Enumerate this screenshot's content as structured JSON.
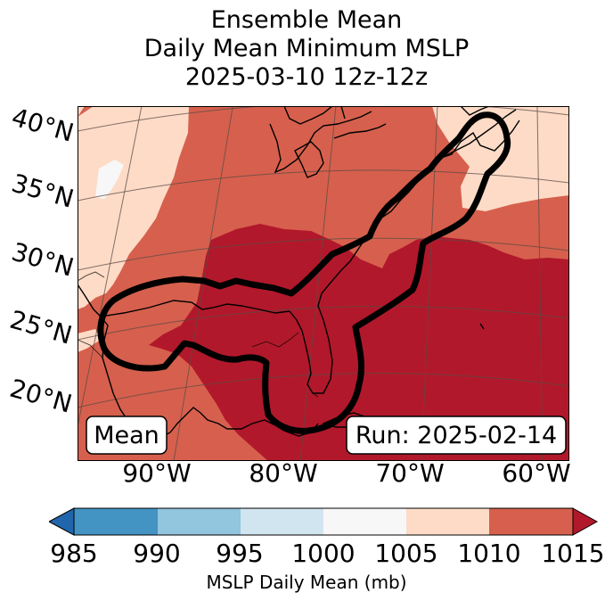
{
  "title": {
    "line1": "Ensemble Mean",
    "line2": "Daily Mean Minimum MSLP",
    "line3": "2025-03-10 12z-12z"
  },
  "map": {
    "lat_labels": [
      "40°N",
      "35°N",
      "30°N",
      "25°N",
      "20°N"
    ],
    "lon_labels": [
      "90°W",
      "80°W",
      "70°W",
      "60°W"
    ],
    "mean_label": "Mean",
    "run_label": "Run: 2025-02-14",
    "colors": {
      "below_985": "#2166ac",
      "985_990": "#4393c3",
      "990_995": "#92c5de",
      "995_1000": "#d1e5f0",
      "1000_1005": "#f7f7f7",
      "1005_1010": "#fddbc7",
      "1010_1015": "#d6604d",
      "above_1015": "#b2182b"
    }
  },
  "colorbar": {
    "ticks": [
      "985",
      "990",
      "995",
      "1000",
      "1005",
      "1010",
      "1015"
    ],
    "label": "MSLP Daily Mean (mb)"
  }
}
